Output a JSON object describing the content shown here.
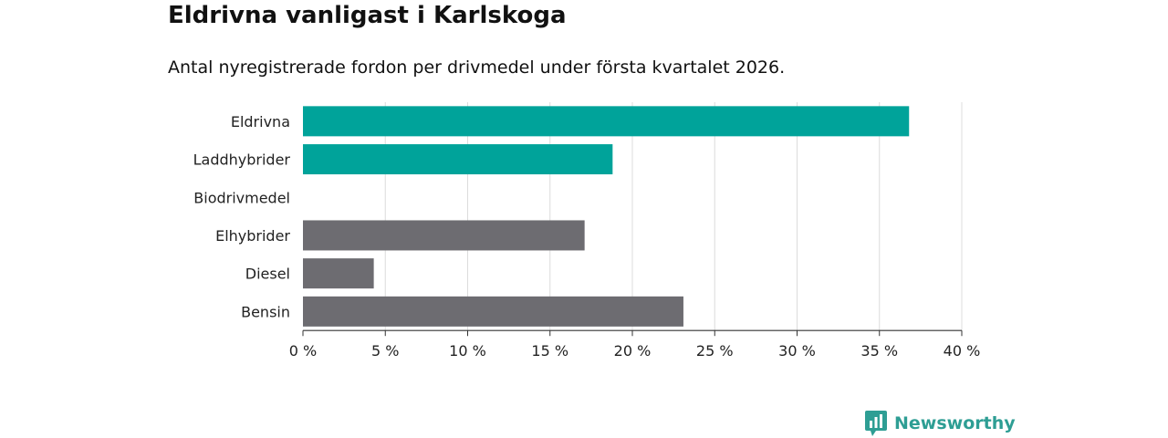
{
  "header": {
    "title": "Eldrivna vanligast i Karlskoga",
    "subtitle": "Antal nyregistrerade fordon per drivmedel under första kvartalet 2026."
  },
  "brand": {
    "name": "Newsworthy",
    "icon": "newsworthy-logo-icon",
    "color": "#2e9e94"
  },
  "chart_data": {
    "type": "bar",
    "orientation": "horizontal",
    "categories": [
      "Eldrivna",
      "Laddhybrider",
      "Biodrivmedel",
      "Elhybrider",
      "Diesel",
      "Bensin"
    ],
    "values": [
      36.8,
      18.8,
      0,
      17.1,
      4.3,
      23.1
    ],
    "colors": [
      "#00a39a",
      "#00a39a",
      "#00a39a",
      "#6d6c71",
      "#6d6c71",
      "#6d6c71"
    ],
    "xlim": [
      0,
      40
    ],
    "xticks": [
      0,
      5,
      10,
      15,
      20,
      25,
      30,
      35,
      40
    ],
    "xtick_labels": [
      "0 %",
      "5 %",
      "10 %",
      "15 %",
      "20 %",
      "25 %",
      "30 %",
      "35 %",
      "40 %"
    ],
    "grid": true
  }
}
